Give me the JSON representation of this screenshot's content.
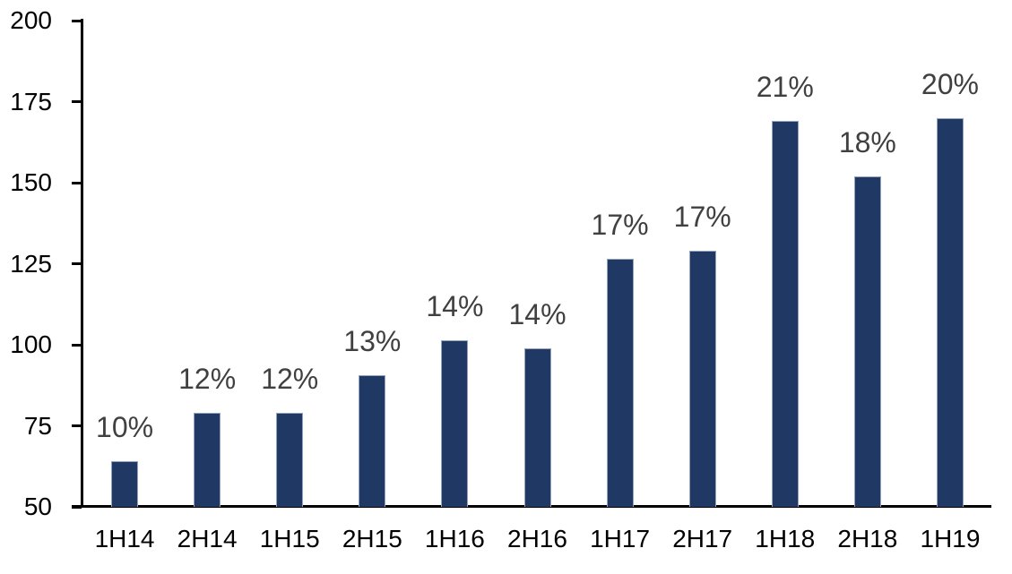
{
  "chart_data": {
    "type": "bar",
    "title": "",
    "xlabel": "",
    "ylabel": "",
    "categories": [
      "1H14",
      "2H14",
      "1H15",
      "2H15",
      "1H16",
      "2H16",
      "1H17",
      "2H17",
      "1H18",
      "2H18",
      "1H19"
    ],
    "values": [
      64,
      79,
      79,
      90.5,
      101.5,
      99,
      126.5,
      129,
      169,
      152,
      170
    ],
    "bar_labels": [
      "10%",
      "12%",
      "12%",
      "13%",
      "14%",
      "14%",
      "17%",
      "17%",
      "21%",
      "18%",
      "20%"
    ],
    "ylim": [
      50,
      200
    ],
    "yticks": [
      50,
      75,
      100,
      125,
      150,
      175,
      200
    ],
    "grid": false,
    "legend": "none",
    "colors": {
      "bar_fill": "#1F3864",
      "bar_border": "#94A3BE",
      "bar_label_text": "#404040",
      "axis_text": "#000000",
      "axis_line": "#000000",
      "background": "#FFFFFF"
    }
  }
}
